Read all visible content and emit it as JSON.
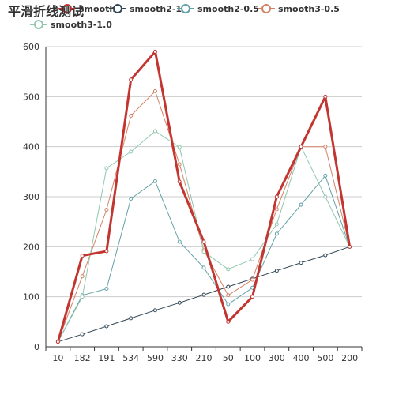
{
  "chart_data": {
    "type": "line",
    "title": "平滑折线测试",
    "categories": [
      "10",
      "182",
      "191",
      "534",
      "590",
      "330",
      "210",
      "50",
      "100",
      "300",
      "400",
      "500",
      "200"
    ],
    "ylim": [
      0,
      600
    ],
    "yticks": [
      0,
      100,
      200,
      300,
      400,
      500,
      600
    ],
    "grid": true,
    "legend_position": "top",
    "series": [
      {
        "name": "smooth",
        "color": "#c23531",
        "width": 3,
        "values": [
          10,
          182,
          191,
          534,
          590,
          330,
          210,
          50,
          100,
          300,
          400,
          500,
          200
        ]
      },
      {
        "name": "smooth2-1",
        "color": "#2f4554",
        "width": 1,
        "values": [
          10,
          25,
          41,
          57,
          73,
          88,
          104,
          120,
          136,
          152,
          168,
          183,
          200
        ]
      },
      {
        "name": "smooth2-0.5",
        "color": "#61a0a8",
        "width": 1,
        "values": [
          10,
          103,
          116,
          296,
          331,
          210,
          158,
          85,
          118,
          226,
          284,
          342,
          200
        ]
      },
      {
        "name": "smooth3-0.5",
        "color": "#d48265",
        "width": 1,
        "values": [
          10,
          141,
          274,
          462,
          511,
          365,
          193,
          103,
          134,
          275,
          400,
          400,
          200
        ]
      },
      {
        "name": "smooth3-1.0",
        "color": "#91c7ae",
        "width": 1,
        "values": [
          10,
          100,
          357,
          390,
          431,
          399,
          190,
          155,
          175,
          245,
          400,
          300,
          200
        ]
      }
    ]
  }
}
